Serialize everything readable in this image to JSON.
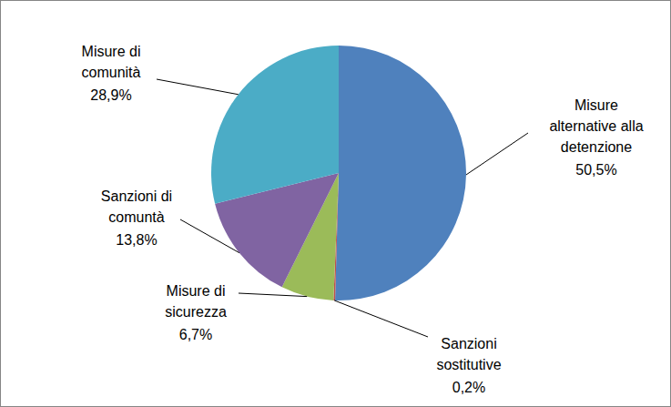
{
  "chart_data": {
    "type": "pie",
    "categories": [
      "Misure alternative alla detenzione",
      "Sanzioni sostitutive",
      "Misure di sicurezza",
      "Sanzioni di comuntà",
      "Misure di comunità"
    ],
    "values": [
      50.5,
      0.2,
      6.7,
      13.8,
      28.9
    ],
    "value_labels": [
      "50,5%",
      "0,2%",
      "6,7%",
      "13,8%",
      "28,9%"
    ],
    "colors": [
      "#4f81bd",
      "#c0504d",
      "#9bbb59",
      "#8064a2",
      "#4bacc6"
    ],
    "data_labels": true
  }
}
